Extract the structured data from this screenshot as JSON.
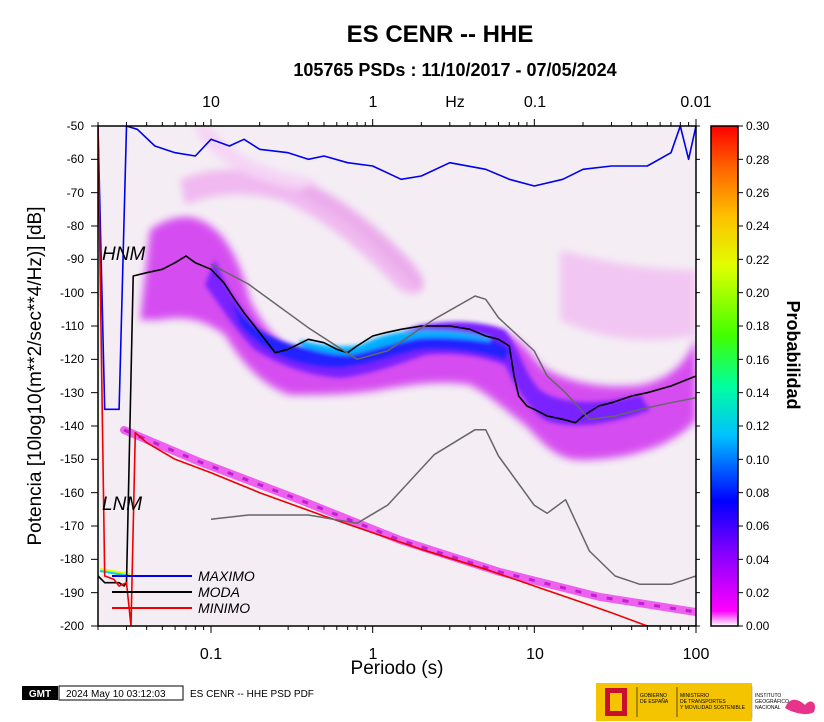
{
  "header": {
    "title": "ES CENR -- HHE",
    "subtitle": "105765 PSDs : 11/10/2017 - 07/05/2024"
  },
  "axes": {
    "xlabel": "Periodo (s)",
    "ylabel": "Potencia [10log10(m**2/sec**4/Hz)] [dB]",
    "top_unit": "Hz",
    "x_ticks": [
      "0.1",
      "1",
      "10",
      "100"
    ],
    "top_ticks": [
      "10",
      "1",
      "0.1",
      "0.01"
    ],
    "y_ticks": [
      "-50",
      "-60",
      "-70",
      "-80",
      "-90",
      "-100",
      "-110",
      "-120",
      "-130",
      "-140",
      "-150",
      "-160",
      "-170",
      "-180",
      "-190",
      "-200"
    ]
  },
  "annotations": {
    "hnm": "HNM",
    "lnm": "LNM"
  },
  "legend": {
    "max": "MAXIMO",
    "mode": "MODA",
    "min": "MINIMO"
  },
  "colorbar": {
    "label": "Probabilidad",
    "ticks": [
      "0.30",
      "0.28",
      "0.26",
      "0.24",
      "0.22",
      "0.20",
      "0.18",
      "0.16",
      "0.14",
      "0.12",
      "0.10",
      "0.08",
      "0.06",
      "0.04",
      "0.02",
      "0.00"
    ],
    "colors": [
      "#ffffff",
      "#ff00ff",
      "#8000ff",
      "#0000ff",
      "#00c0ff",
      "#00ffa0",
      "#40ff00",
      "#e0ff00",
      "#ffc000",
      "#ff6000",
      "#ff0000"
    ]
  },
  "footer": {
    "logo": "GMT",
    "timestamp": "2024 May 10 03:12:03",
    "caption": "ES CENR -- HHE PSD PDF",
    "gov_line1": "GOBIERNO",
    "gov_line2": "DE ESPAÑA",
    "min_line1": "MINISTERIO",
    "min_line2": "DE TRANSPORTES",
    "min_line3": "Y MOVILIDAD SOSTENIBLE",
    "ign_line1": "INSTITUTO",
    "ign_line2": "GEOGRÁFICO",
    "ign_line3": "NACIONAL"
  },
  "colors": {
    "maximo": "#0000ee",
    "moda": "#000000",
    "minimo": "#ee0000",
    "noise_model": "#666666"
  },
  "chart_data": {
    "type": "line",
    "title": "ES CENR -- HHE",
    "subtitle": "105765 PSDs : 11/10/2017 - 07/05/2024",
    "xlabel": "Periodo (s)",
    "ylabel": "Potencia [10log10(m**2/sec**4/Hz)] [dB]",
    "x_scale": "log",
    "xlim": [
      0.02,
      100
    ],
    "ylim": [
      -200,
      -50
    ],
    "top_axis": {
      "label": "Hz",
      "ticks": [
        10,
        1,
        0.1,
        0.01
      ]
    },
    "grid": false,
    "legend_position": "bottom-left",
    "colorbar": {
      "label": "Probabilidad",
      "range": [
        0,
        0.3
      ]
    },
    "series": [
      {
        "name": "MAXIMO",
        "color": "#0000ee",
        "x": [
          0.02,
          0.022,
          0.025,
          0.027,
          0.03,
          0.035,
          0.045,
          0.06,
          0.08,
          0.1,
          0.13,
          0.16,
          0.2,
          0.3,
          0.4,
          0.5,
          0.7,
          1,
          1.5,
          2,
          3,
          5,
          7,
          10,
          15,
          20,
          30,
          50,
          70,
          80,
          90,
          100
        ],
        "y": [
          -50,
          -135,
          -135,
          -135,
          -50,
          -51,
          -56,
          -58,
          -59,
          -54,
          -56,
          -54,
          -57,
          -58,
          -60,
          -59,
          -61,
          -62,
          -66,
          -65,
          -61,
          -63,
          -66,
          -68,
          -66,
          -63,
          -62,
          -62,
          -58,
          -50,
          -60,
          -50
        ]
      },
      {
        "name": "MODA",
        "color": "#000000",
        "x": [
          0.02,
          0.021,
          0.022,
          0.025,
          0.027,
          0.029,
          0.03,
          0.033,
          0.04,
          0.05,
          0.06,
          0.07,
          0.08,
          0.1,
          0.12,
          0.14,
          0.16,
          0.2,
          0.25,
          0.3,
          0.4,
          0.5,
          0.6,
          0.7,
          0.8,
          1,
          1.2,
          1.5,
          2,
          3,
          4,
          5,
          6,
          7,
          7.5,
          8,
          9,
          10,
          12,
          15,
          18,
          20,
          25,
          30,
          40,
          50,
          70,
          100
        ],
        "y": [
          -185,
          -186,
          -187,
          -187,
          -187,
          -188,
          -187,
          -95,
          -94,
          -93,
          -91,
          -89,
          -91,
          -93,
          -97,
          -102,
          -106,
          -112,
          -118,
          -117,
          -114,
          -115,
          -117,
          -118,
          -116,
          -113,
          -112,
          -111,
          -110,
          -110,
          -111,
          -113,
          -114,
          -116,
          -125,
          -131,
          -134,
          -135,
          -137,
          -138,
          -139,
          -137,
          -134,
          -133,
          -131,
          -130,
          -128,
          -125
        ]
      },
      {
        "name": "MINIMO",
        "color": "#ee0000",
        "x": [
          0.02,
          0.022,
          0.025,
          0.027,
          0.03,
          0.032,
          0.034,
          0.04,
          0.06,
          0.1,
          0.2,
          0.5,
          1,
          2,
          5,
          10,
          20,
          30,
          50,
          70,
          100
        ],
        "y": [
          -50,
          -185,
          -186,
          -188,
          -187,
          -200,
          -142,
          -145,
          -150,
          -154,
          -160,
          -167,
          -172,
          -177,
          -183,
          -188,
          -193,
          -196,
          -200,
          -200,
          -200
        ]
      },
      {
        "name": "HNM",
        "color": "#666666",
        "x": [
          0.1,
          0.17,
          0.4,
          0.8,
          1.24,
          2.4,
          4.3,
          5,
          6,
          10,
          12,
          15.6,
          21.9,
          31.6,
          45,
          70,
          100
        ],
        "y": [
          -91.5,
          -97.4,
          -110.5,
          -120,
          -117.4,
          -108,
          -101,
          -102,
          -107.5,
          -117.5,
          -125,
          -130,
          -138,
          -137,
          -135,
          -133,
          -131.5
        ]
      },
      {
        "name": "LNM",
        "color": "#666666",
        "x": [
          0.1,
          0.17,
          0.4,
          0.8,
          1.24,
          2.4,
          4.3,
          5,
          6,
          10,
          12,
          15.6,
          21.9,
          31.6,
          45,
          70,
          100
        ],
        "y": [
          -168,
          -166.7,
          -166.7,
          -169.2,
          -163.7,
          -148.6,
          -141.1,
          -141.1,
          -149,
          -163.8,
          -166.2,
          -162.1,
          -177.5,
          -185,
          -187.5,
          -187.5,
          -185
        ]
      }
    ]
  }
}
